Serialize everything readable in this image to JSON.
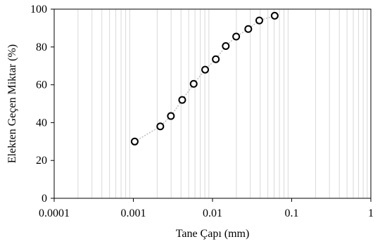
{
  "chart_data": {
    "type": "scatter",
    "xlabel": "Tane Çapı (mm)",
    "ylabel": "Elekten Geçen Miktar (%)",
    "x_scale": "log",
    "xlim": [
      0.0001,
      1
    ],
    "ylim": [
      0,
      100
    ],
    "x_ticks": [
      {
        "value": 0.0001,
        "label": "0.0001"
      },
      {
        "value": 0.001,
        "label": "0.001"
      },
      {
        "value": 0.01,
        "label": "0.01"
      },
      {
        "value": 0.1,
        "label": "0.1"
      },
      {
        "value": 1,
        "label": "1"
      }
    ],
    "y_ticks": [
      {
        "value": 0,
        "label": "0"
      },
      {
        "value": 20,
        "label": "20"
      },
      {
        "value": 40,
        "label": "40"
      },
      {
        "value": 60,
        "label": "60"
      },
      {
        "value": 80,
        "label": "80"
      },
      {
        "value": 100,
        "label": "100"
      }
    ],
    "grid": {
      "x_minor": true,
      "y_major": false
    },
    "colors": {
      "line": "#bfbfbf",
      "marker_edge": "#000000",
      "marker_fill": "#ffffff",
      "grid": "#d9d9d9",
      "frame": "#000000"
    },
    "series": [
      {
        "marker": "circle",
        "x": [
          0.00104,
          0.00219,
          0.00298,
          0.00414,
          0.00578,
          0.00807,
          0.011,
          0.0147,
          0.0199,
          0.0283,
          0.039,
          0.061
        ],
        "y": [
          30,
          38,
          43.5,
          52,
          60.5,
          68,
          73.5,
          80.5,
          85.5,
          89.5,
          94,
          96.5
        ]
      }
    ]
  }
}
